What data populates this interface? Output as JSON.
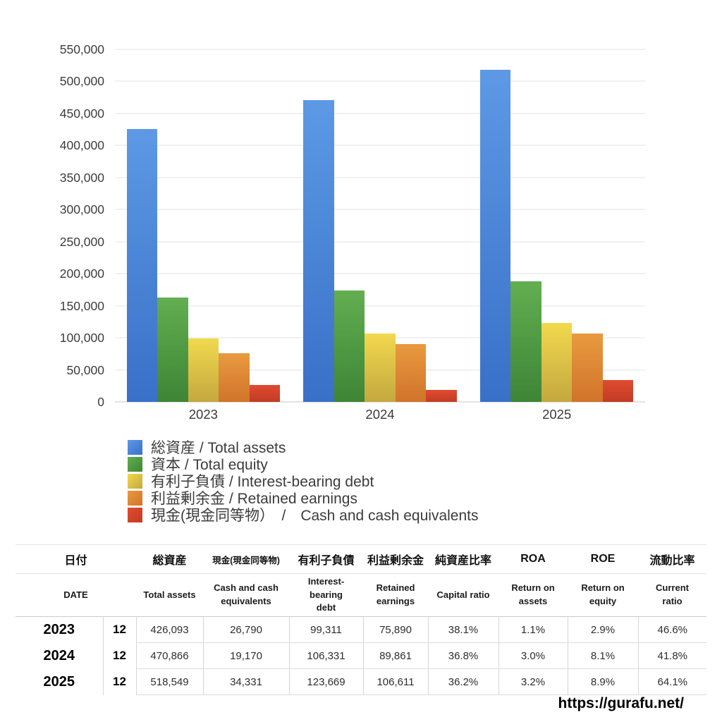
{
  "chart_data": {
    "type": "bar",
    "categories": [
      "2023",
      "2024",
      "2025"
    ],
    "series": [
      {
        "key": "total-assets",
        "label": "総資産 / Total assets",
        "values": [
          426093,
          470866,
          518549
        ],
        "color_top": "#5d99e5",
        "color_bottom": "#3970c8"
      },
      {
        "key": "total-equity",
        "label": "資本 / Total equity",
        "values": [
          162341,
          173279,
          187715
        ],
        "color_top": "#62ae50",
        "color_bottom": "#3e8536"
      },
      {
        "key": "interest-bearing-debt",
        "label": "有利子負債 / Interest-bearing debt",
        "values": [
          99311,
          106331,
          123669
        ],
        "color_top": "#f2d94e",
        "color_bottom": "#c3a83f"
      },
      {
        "key": "retained-earnings",
        "label": "利益剰余金 / Retained earnings",
        "values": [
          75890,
          89861,
          106611
        ],
        "color_top": "#e99a40",
        "color_bottom": "#d0742a"
      },
      {
        "key": "cash",
        "label": "現金(現金同等物）　/　Cash and cash equivalents",
        "values": [
          26790,
          19170,
          34331
        ],
        "color_top": "#e04b30",
        "color_bottom": "#c23b25"
      }
    ],
    "ylim": [
      0,
      550000
    ],
    "ytick_step": 50000,
    "yticks": [
      "0",
      "50,000",
      "100,000",
      "150,000",
      "200,000",
      "250,000",
      "300,000",
      "350,000",
      "400,000",
      "450,000",
      "500,000",
      "550,000"
    ],
    "grid": "horizontal",
    "legend_position": "below-left"
  },
  "table": {
    "header_jp": [
      "日付",
      "総資産",
      "現金(現金同等物)",
      "有利子負債",
      "利益剰余金",
      "純資産比率",
      "ROA",
      "ROE",
      "流動比率"
    ],
    "header_en": [
      "DATE",
      "Total assets",
      "Cash and cash\nequivalents",
      "Interest-\nbearing\ndebt",
      "Retained\nearnings",
      "Capital ratio",
      "Return on\nassets",
      "Return on\nequity",
      "Current\nratio"
    ],
    "rows": [
      {
        "year": "2023",
        "month": "12",
        "values": [
          "426,093",
          "26,790",
          "99,311",
          "75,890",
          "38.1%",
          "1.1%",
          "2.9%",
          "46.6%"
        ]
      },
      {
        "year": "2024",
        "month": "12",
        "values": [
          "470,866",
          "19,170",
          "106,331",
          "89,861",
          "36.8%",
          "3.0%",
          "8.1%",
          "41.8%"
        ]
      },
      {
        "year": "2025",
        "month": "12",
        "values": [
          "518,549",
          "34,331",
          "123,669",
          "106,611",
          "36.2%",
          "3.2%",
          "8.9%",
          "64.1%"
        ]
      }
    ]
  },
  "footer": {
    "url": "https://gurafu.net/"
  }
}
